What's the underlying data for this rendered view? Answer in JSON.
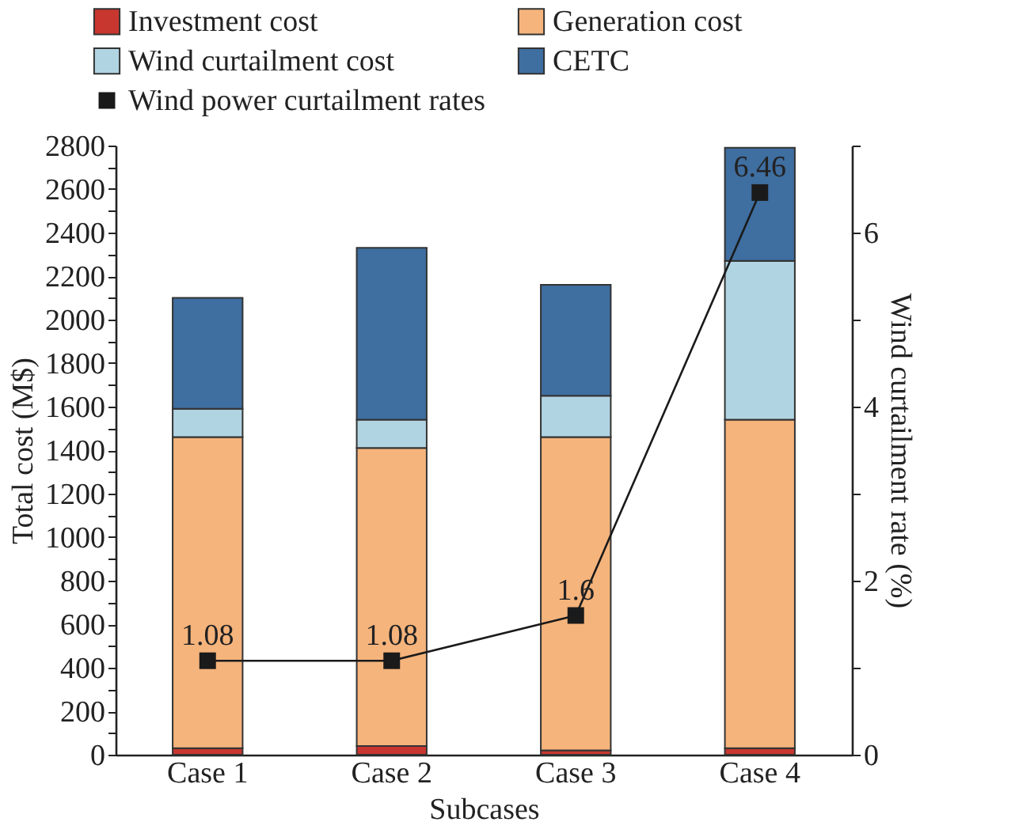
{
  "chart_data": {
    "type": "bar",
    "stacked": true,
    "xlabel": "Subcases",
    "ylabel": "Total cost (M$)",
    "y2label": "Wind curtailment rate (%)",
    "categories": [
      "Case 1",
      "Case 2",
      "Case 3",
      "Case 4"
    ],
    "series": [
      {
        "name": "Investment cost",
        "color": "#c8372f",
        "values": [
          30,
          40,
          20,
          30
        ]
      },
      {
        "name": "Generation cost",
        "color": "#f5b47c",
        "values": [
          1430,
          1370,
          1440,
          1510
        ]
      },
      {
        "name": "Wind curtailment cost",
        "color": "#b1d4e2",
        "values": [
          130,
          130,
          190,
          730
        ]
      },
      {
        "name": "CETC",
        "color": "#3f6ea0",
        "values": [
          510,
          790,
          510,
          520
        ]
      },
      {
        "name": "Wind power curtailment rates",
        "type": "line",
        "axis": "y2",
        "color": "#1a1a1a",
        "marker": "square",
        "data_labels": true,
        "values": [
          1.08,
          1.08,
          1.6,
          6.46
        ]
      }
    ],
    "ylim": [
      0,
      2800
    ],
    "yticks": [
      0,
      {
        "value": 100,
        "label": null
      },
      200,
      {
        "value": 300,
        "label": null
      },
      400,
      {
        "value": 500,
        "label": null
      },
      600,
      {
        "value": 700,
        "label": null
      },
      800,
      {
        "value": 900,
        "label": null
      },
      1000,
      {
        "value": 1100,
        "label": null
      },
      1200,
      {
        "value": 1300,
        "label": null
      },
      1400,
      {
        "value": 1500,
        "label": null
      },
      1600,
      {
        "value": 1700,
        "label": null
      },
      1800,
      {
        "value": 1900,
        "label": null
      },
      2000,
      {
        "value": 2100,
        "label": null
      },
      2200,
      {
        "value": 2300,
        "label": null
      },
      2400,
      {
        "value": 2500,
        "label": null
      },
      2600,
      {
        "value": 2700,
        "label": null
      },
      2800
    ],
    "y2lim": [
      0,
      7
    ],
    "y2ticks": [
      0,
      {
        "value": 1,
        "label": null
      },
      2,
      {
        "value": 3,
        "label": null
      },
      4,
      {
        "value": 5,
        "label": null
      },
      6,
      {
        "value": 7,
        "label": null
      }
    ],
    "legend": "top",
    "grid": false
  }
}
